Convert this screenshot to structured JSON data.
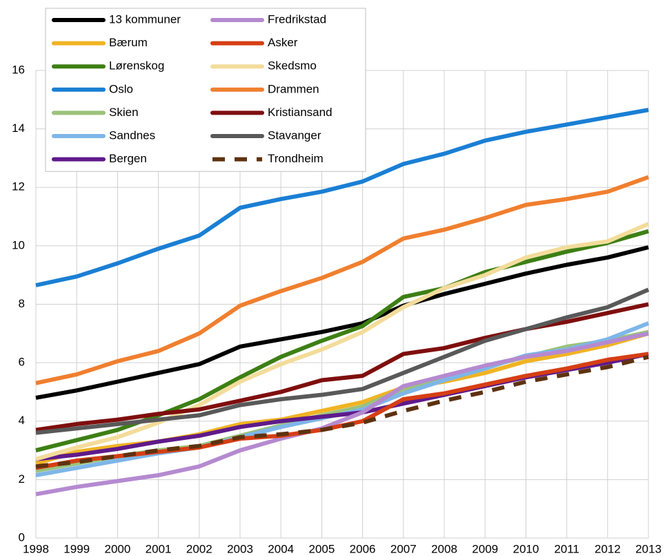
{
  "chart_data": {
    "type": "line",
    "categories": [
      "1998",
      "1999",
      "2000",
      "2001",
      "2002",
      "2003",
      "2004",
      "2005",
      "2006",
      "2007",
      "2008",
      "2009",
      "2010",
      "2011",
      "2012",
      "2013"
    ],
    "series": [
      {
        "name": "13 kommuner",
        "color": "#000000",
        "values": [
          4.8,
          5.05,
          5.35,
          5.65,
          5.95,
          6.55,
          6.8,
          7.05,
          7.35,
          7.95,
          8.35,
          8.7,
          9.05,
          9.35,
          9.6,
          9.95
        ]
      },
      {
        "name": "Bærum",
        "color": "#f0b323",
        "values": [
          2.55,
          2.95,
          3.15,
          3.3,
          3.55,
          3.9,
          4.05,
          4.35,
          4.65,
          5.15,
          5.35,
          5.65,
          6.05,
          6.3,
          6.6,
          7.0
        ]
      },
      {
        "name": "Lørenskog",
        "color": "#3d7f14",
        "values": [
          3.0,
          3.35,
          3.7,
          4.2,
          4.75,
          5.5,
          6.2,
          6.75,
          7.25,
          8.25,
          8.55,
          9.1,
          9.45,
          9.8,
          10.1,
          10.5
        ]
      },
      {
        "name": "Oslo",
        "color": "#1a7fd4",
        "values": [
          8.65,
          8.95,
          9.4,
          9.9,
          10.35,
          11.3,
          11.6,
          11.85,
          12.2,
          12.8,
          13.15,
          13.6,
          13.9,
          14.15,
          14.4,
          14.65
        ]
      },
      {
        "name": "Skien",
        "color": "#9bc27b",
        "values": [
          2.3,
          2.55,
          2.8,
          3.0,
          3.15,
          3.5,
          3.85,
          4.2,
          4.5,
          5.1,
          5.45,
          5.85,
          6.2,
          6.55,
          6.75,
          7.05
        ]
      },
      {
        "name": "Sandnes",
        "color": "#7eb6e8",
        "values": [
          2.15,
          2.4,
          2.65,
          2.9,
          3.1,
          3.45,
          3.8,
          4.1,
          4.4,
          4.95,
          5.4,
          5.8,
          6.25,
          6.45,
          6.8,
          7.35
        ]
      },
      {
        "name": "Bergen",
        "color": "#5f1a8a",
        "values": [
          2.7,
          2.85,
          3.05,
          3.3,
          3.5,
          3.8,
          4.0,
          4.15,
          4.3,
          4.6,
          4.9,
          5.2,
          5.5,
          5.75,
          6.0,
          6.3
        ]
      },
      {
        "name": "Fredrikstad",
        "color": "#b58ad0",
        "values": [
          1.5,
          1.75,
          1.95,
          2.15,
          2.45,
          3.0,
          3.4,
          3.75,
          4.3,
          5.2,
          5.55,
          5.9,
          6.2,
          6.4,
          6.7,
          7.0
        ]
      },
      {
        "name": "Asker",
        "color": "#d63e14",
        "values": [
          2.4,
          2.65,
          2.8,
          2.95,
          3.1,
          3.4,
          3.5,
          3.7,
          4.0,
          4.75,
          4.95,
          5.25,
          5.55,
          5.8,
          6.1,
          6.3
        ]
      },
      {
        "name": "Skedsmo",
        "color": "#f3dc9a",
        "values": [
          2.7,
          3.1,
          3.45,
          3.95,
          4.55,
          5.35,
          5.95,
          6.45,
          7.05,
          7.9,
          8.55,
          9.0,
          9.6,
          9.95,
          10.15,
          10.75
        ]
      },
      {
        "name": "Drammen",
        "color": "#f07f2f",
        "values": [
          5.3,
          5.6,
          6.05,
          6.4,
          7.0,
          7.95,
          8.45,
          8.9,
          9.45,
          10.25,
          10.55,
          10.95,
          11.4,
          11.6,
          11.85,
          12.35
        ]
      },
      {
        "name": "Kristiansand",
        "color": "#7f0e0e",
        "values": [
          3.7,
          3.9,
          4.05,
          4.25,
          4.4,
          4.7,
          5.0,
          5.4,
          5.55,
          6.3,
          6.5,
          6.85,
          7.15,
          7.4,
          7.7,
          8.0
        ]
      },
      {
        "name": "Stavanger",
        "color": "#595959",
        "values": [
          3.6,
          3.75,
          3.9,
          4.05,
          4.2,
          4.55,
          4.75,
          4.9,
          5.1,
          5.65,
          6.2,
          6.75,
          7.15,
          7.55,
          7.9,
          8.5
        ]
      },
      {
        "name": "Trondheim",
        "color": "#5e3210",
        "dashed": true,
        "values": [
          2.45,
          2.6,
          2.8,
          3.0,
          3.15,
          3.45,
          3.55,
          3.7,
          3.95,
          4.35,
          4.7,
          5.0,
          5.35,
          5.6,
          5.85,
          6.2
        ]
      }
    ],
    "ylim": [
      0,
      16
    ],
    "yticks": [
      0,
      2,
      4,
      6,
      8,
      10,
      12,
      14,
      16
    ],
    "grid": true,
    "legend": "upper left"
  }
}
